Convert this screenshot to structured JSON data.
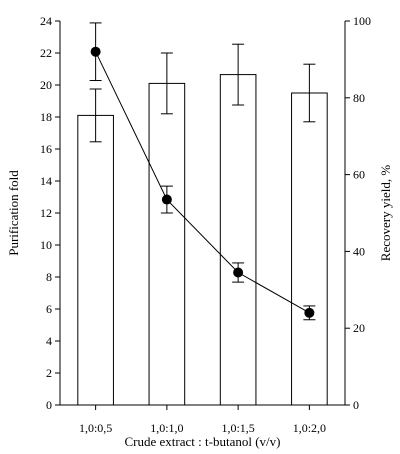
{
  "chart_data": {
    "type": "bar",
    "categories": [
      "1,0:0,5",
      "1,0:1,0",
      "1,0:1,5",
      "1,0:2,0"
    ],
    "xlabel": "Crude extract : t-butanol (v/v)",
    "ylabel": "Purification fold",
    "y2label": "Recovery yield, %",
    "ylim": [
      0,
      24
    ],
    "y2lim": [
      0,
      100
    ],
    "yticks": [
      "0",
      "2",
      "4",
      "6",
      "8",
      "10",
      "12",
      "14",
      "16",
      "18",
      "20",
      "22",
      "24"
    ],
    "y2ticks": [
      "0",
      "20",
      "40",
      "60",
      "80",
      "100"
    ],
    "grid": false,
    "series": [
      {
        "type": "bar",
        "axis": "left",
        "values": [
          18.1,
          20.1,
          20.65,
          19.5
        ],
        "error": [
          1.65,
          1.9,
          1.9,
          1.8
        ]
      },
      {
        "type": "line",
        "axis": "right",
        "values": [
          92,
          53.5,
          34.5,
          24
        ],
        "error": [
          7.5,
          3.5,
          2.5,
          1.8
        ]
      }
    ]
  }
}
